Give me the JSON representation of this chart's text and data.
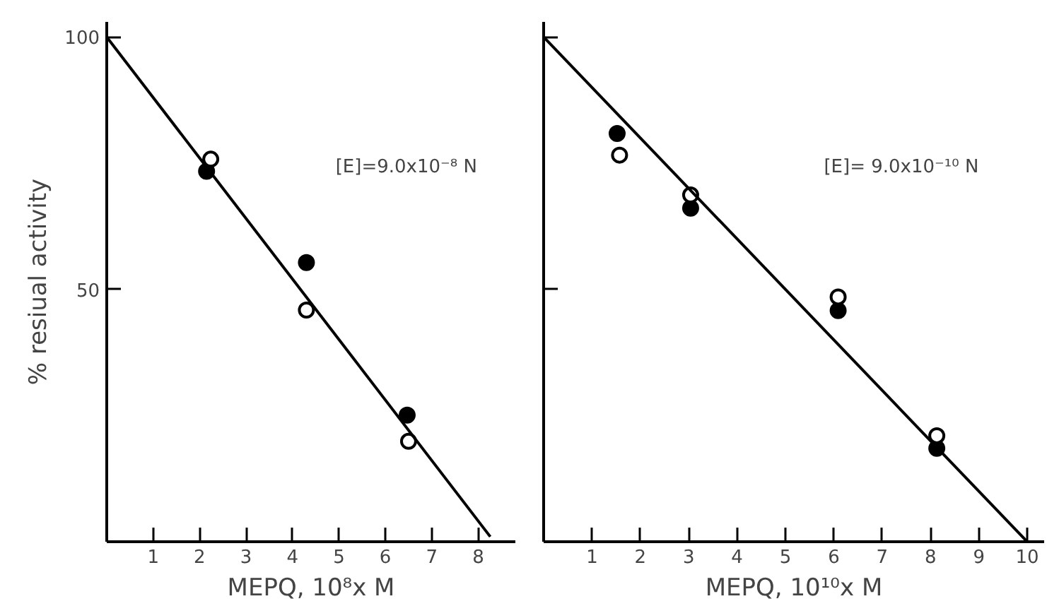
{
  "chart_data": [
    {
      "type": "scatter",
      "xlabel": "MEPQ, 10⁸x M",
      "ylabel": "% resiual activity",
      "annotations": [
        "[E]=9.0x10⁻⁸ N"
      ],
      "xlim": [
        0,
        8.8
      ],
      "ylim": [
        0,
        103
      ],
      "xticks": [
        1,
        2,
        3,
        4,
        5,
        6,
        7,
        8
      ],
      "yticks": [
        50,
        100
      ],
      "grid": false,
      "series": [
        {
          "color": "#000000",
          "marker": "circle",
          "x": [
            2.15,
            4.3,
            6.47
          ],
          "values": [
            73.4,
            55.3,
            25.1
          ]
        },
        {
          "color": "#ffffff",
          "marker": "circle",
          "x": [
            2.24,
            4.3,
            6.5
          ],
          "values": [
            75.8,
            45.9,
            19.9
          ]
        },
        {
          "type": "line",
          "color": "#000000",
          "marker": "none",
          "x": [
            0,
            8.26
          ],
          "values": [
            100,
            1
          ]
        }
      ]
    },
    {
      "type": "scatter",
      "xlabel": "MEPQ, 10¹⁰x M",
      "annotations": [
        "[E]= 9.0x10⁻¹⁰ N"
      ],
      "xlim": [
        0,
        10.35
      ],
      "ylim": [
        0,
        103
      ],
      "xticks": [
        1,
        2,
        3,
        4,
        5,
        6,
        7,
        8,
        9,
        10
      ],
      "yticks": [
        {
          "value": 0,
          "label": null
        },
        {
          "value": 50,
          "label": null
        },
        {
          "value": 100,
          "label": null
        }
      ],
      "tick_labels": "x",
      "grid": false,
      "series": [
        {
          "color": "#000000",
          "marker": "circle",
          "x": [
            1.52,
            3.04,
            6.09,
            8.13
          ],
          "values": [
            80.9,
            66.1,
            45.8,
            18.5
          ]
        },
        {
          "color": "#ffffff",
          "marker": "circle",
          "x": [
            1.57,
            3.04,
            6.09,
            8.13
          ],
          "values": [
            76.6,
            68.7,
            48.5,
            21.0
          ]
        },
        {
          "type": "line",
          "color": "#000000",
          "marker": "none",
          "x": [
            0,
            10
          ],
          "values": [
            100,
            0
          ]
        }
      ]
    }
  ]
}
